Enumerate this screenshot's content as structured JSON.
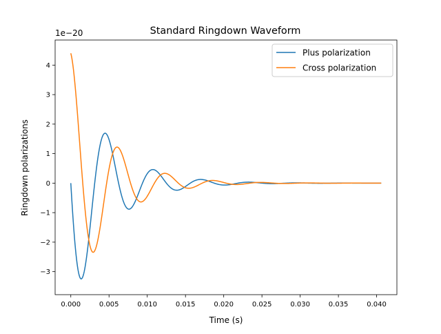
{
  "chart_data": {
    "type": "line",
    "title": "Standard Ringdown Waveform",
    "xlabel": "Time (s)",
    "ylabel": "Ringdown polarizations",
    "y_offset_label": "1e−20",
    "xlim": [
      -0.00205,
      0.04265
    ],
    "ylim": [
      -3.78,
      4.85
    ],
    "x_ticks": [
      0.0,
      0.005,
      0.01,
      0.015,
      0.02,
      0.025,
      0.03,
      0.035,
      0.04
    ],
    "x_tick_labels": [
      "0.000",
      "0.005",
      "0.010",
      "0.015",
      "0.020",
      "0.025",
      "0.030",
      "0.035",
      "0.040"
    ],
    "y_ticks": [
      -3,
      -2,
      -1,
      0,
      1,
      2,
      3,
      4
    ],
    "y_tick_labels": [
      "−3",
      "−2",
      "−1",
      "0",
      "1",
      "2",
      "3",
      "4"
    ],
    "grid": false,
    "legend_position": "upper-right",
    "series": [
      {
        "name": "Plus polarization",
        "color": "#1f77b4",
        "model": {
          "amplitude": 4.4,
          "frequency_hz": 160.0,
          "tau_s": 0.0048,
          "phase": 0.0,
          "x_start": 0.0,
          "x_end": 0.0406
        }
      },
      {
        "name": "Cross polarization",
        "color": "#ff7f0e",
        "model": {
          "amplitude": 4.4,
          "frequency_hz": 160.0,
          "tau_s": 0.0048,
          "phase": 1.5708,
          "x_start": 0.0,
          "x_end": 0.0406
        }
      }
    ]
  }
}
